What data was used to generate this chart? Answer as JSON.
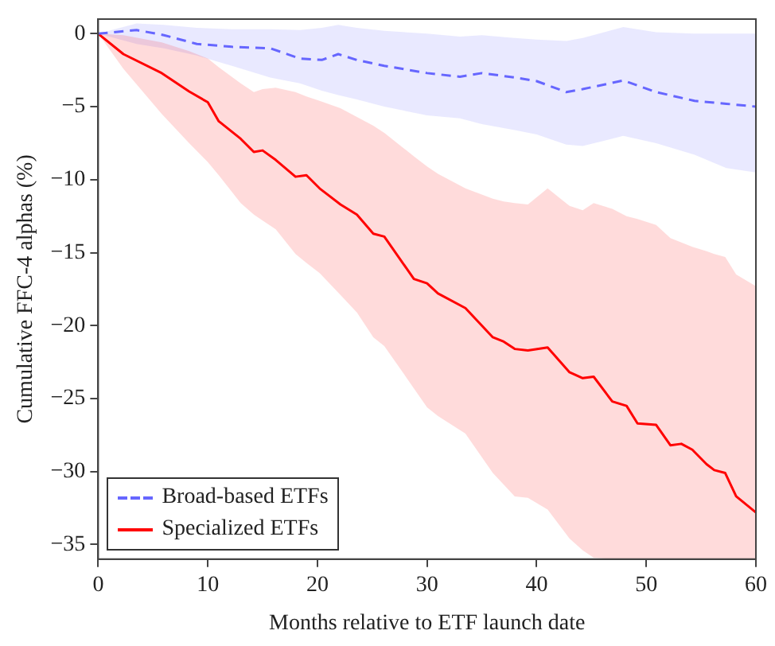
{
  "chart_data": {
    "type": "line",
    "xlabel": "Months relative to ETF launch date",
    "ylabel": "Cumulative FFC-4 alphas (%)",
    "xlim": [
      0,
      60
    ],
    "xticks": [
      0,
      10,
      20,
      30,
      40,
      50,
      60
    ],
    "ylim": [
      -36,
      1
    ],
    "yticks": [
      0,
      {
        "value": -5,
        "label": "−5"
      },
      {
        "value": -10,
        "label": "−10"
      },
      {
        "value": -15,
        "label": "−15"
      },
      {
        "value": -20,
        "label": "−20"
      },
      {
        "value": -25,
        "label": "−25"
      },
      {
        "value": -30,
        "label": "−30"
      },
      {
        "value": -35,
        "label": "−35"
      }
    ],
    "grid": false,
    "legend": "bottom left",
    "marker": "none",
    "series": [
      {
        "name": "Broad-based ETFs",
        "color": "#6666ff",
        "line_style": "dashed",
        "x": [
          0,
          3.5,
          6,
          9,
          12.2,
          15.7,
          18.4,
          20.4,
          21.9,
          23.6,
          26.1,
          30,
          33,
          35,
          38,
          40,
          42.7,
          44.2,
          47.9,
          50.9,
          54.4,
          57.3,
          60
        ],
        "values": [
          0,
          0.25,
          -0.1,
          -0.7,
          -0.9,
          -1.0,
          -1.7,
          -1.8,
          -1.4,
          -1.8,
          -2.2,
          -2.7,
          -2.95,
          -2.7,
          -3,
          -3.25,
          -4.0,
          -3.8,
          -3.2,
          -4.0,
          -4.6,
          -4.8,
          -5.0
        ],
        "upper": [
          0,
          0.7,
          0.6,
          0.4,
          0.3,
          0.3,
          0.25,
          0.4,
          0.6,
          0.4,
          0.2,
          0,
          -0.2,
          -0.1,
          -0.3,
          -0.4,
          -0.5,
          -0.3,
          0.45,
          0.1,
          0,
          0,
          0
        ],
        "lower": [
          0,
          -0.7,
          -1.0,
          -1.5,
          -2.2,
          -3.0,
          -3.4,
          -3.9,
          -4.2,
          -4.5,
          -5.0,
          -5.6,
          -5.8,
          -6.2,
          -6.6,
          -6.9,
          -7.6,
          -7.7,
          -7.0,
          -7.5,
          -8.3,
          -9.2,
          -9.5
        ]
      },
      {
        "name": "Specialized ETFs",
        "color": "#ff0000",
        "line_style": "solid",
        "x": [
          0,
          2.3,
          5.8,
          8.3,
          10,
          11,
          13,
          14.2,
          15,
          16.2,
          18,
          19,
          20.2,
          22.1,
          23.6,
          25.1,
          26.1,
          28.8,
          30,
          31,
          33.5,
          36,
          37,
          38,
          39.2,
          41,
          43,
          44.2,
          45.2,
          46.9,
          48.2,
          49.2,
          50.9,
          52.2,
          53.2,
          54.2,
          55.5,
          56.2,
          57.2,
          58.2,
          60
        ],
        "values": [
          0,
          -1.4,
          -2.7,
          -3.96,
          -4.7,
          -6,
          -7.2,
          -8.1,
          -8.0,
          -8.65,
          -9.8,
          -9.7,
          -10.6,
          -11.7,
          -12.4,
          -13.7,
          -13.9,
          -16.8,
          -17.1,
          -17.8,
          -18.8,
          -20.8,
          -21.1,
          -21.6,
          -21.7,
          -21.5,
          -23.2,
          -23.6,
          -23.5,
          -25.2,
          -25.5,
          -26.7,
          -26.8,
          -28.2,
          -28.1,
          -28.5,
          -29.5,
          -29.9,
          -30.1,
          -31.7,
          -32.8
        ],
        "upper": [
          0,
          -0.1,
          -0.6,
          -1.2,
          -1.7,
          -2.3,
          -3.4,
          -4.0,
          -3.8,
          -3.7,
          -4.0,
          -4.3,
          -4.6,
          -5.1,
          -5.7,
          -6.3,
          -6.8,
          -8.4,
          -9.1,
          -9.6,
          -10.6,
          -11.3,
          -11.5,
          -11.6,
          -11.7,
          -10.6,
          -11.8,
          -12.1,
          -11.6,
          -12.0,
          -12.5,
          -12.7,
          -13.1,
          -14.0,
          -14.3,
          -14.6,
          -14.9,
          -15.1,
          -15.3,
          -16.5,
          -17.3
        ],
        "lower": [
          0,
          -2.4,
          -5.5,
          -7.5,
          -8.8,
          -9.7,
          -11.6,
          -12.4,
          -12.8,
          -13.4,
          -15.1,
          -15.7,
          -16.4,
          -17.9,
          -19.1,
          -20.8,
          -21.4,
          -24.3,
          -25.6,
          -26.2,
          -27.4,
          -30.1,
          -30.9,
          -31.7,
          -31.8,
          -32.6,
          -34.6,
          -35.4,
          -35.9,
          -36,
          -36,
          -36,
          -36,
          -36,
          -36,
          -36,
          -36,
          -36,
          -36,
          -36,
          -36
        ]
      }
    ]
  }
}
